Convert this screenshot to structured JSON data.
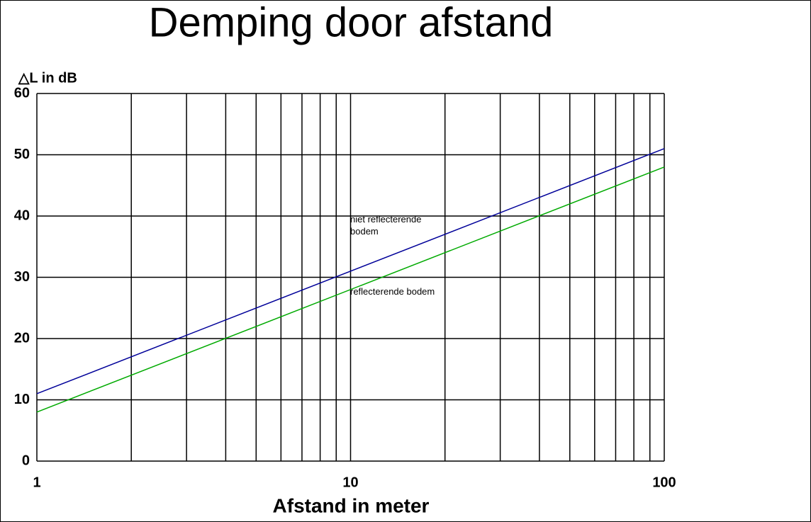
{
  "chart_data": {
    "type": "line",
    "title": "Demping door afstand",
    "ylabel": "△L in dB",
    "xlabel": "Afstand in meter",
    "xscale": "log",
    "xlim": [
      1,
      100
    ],
    "xticks": [
      1,
      10,
      100
    ],
    "xminor_ticks": [
      2,
      3,
      4,
      5,
      6,
      7,
      8,
      9,
      20,
      30,
      40,
      50,
      60,
      70,
      80,
      90
    ],
    "ylim": [
      0,
      60
    ],
    "yticks": [
      0,
      10,
      20,
      30,
      40,
      50,
      60
    ],
    "grid": true,
    "series": [
      {
        "name": "niet reflecterende bodem",
        "color": "#000099",
        "x": [
          1,
          100
        ],
        "values": [
          11,
          51
        ]
      },
      {
        "name": "reflecterende bodem",
        "color": "#00aa00",
        "x": [
          1,
          100
        ],
        "values": [
          8,
          48
        ]
      }
    ]
  }
}
